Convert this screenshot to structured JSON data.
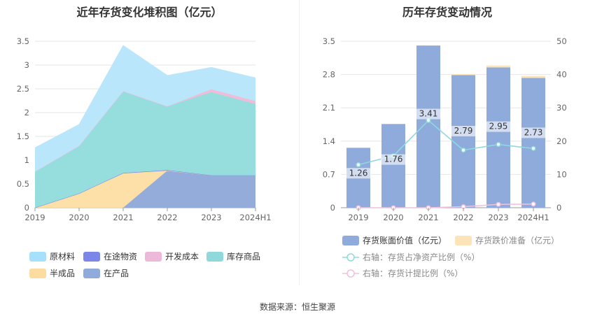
{
  "source_text": "数据来源：恒生聚源",
  "chart_data": [
    {
      "type": "area",
      "title": "近年存货变化堆积图（亿元）",
      "stacked": true,
      "x": [
        "2019",
        "2020",
        "2021",
        "2022",
        "2023",
        "2024H1"
      ],
      "ylim": [
        0,
        3.5
      ],
      "yticks": [
        "0",
        "0.5",
        "1",
        "1.5",
        "2",
        "2.5",
        "3",
        "3.5"
      ],
      "grid": true,
      "legend_position": "bottom",
      "series": [
        {
          "name": "在产品",
          "color": "#94acd9",
          "values": [
            0,
            0,
            0,
            0.78,
            0.68,
            0.68
          ]
        },
        {
          "name": "半成品",
          "color": "#fde0a8",
          "values": [
            0,
            0.3,
            0.72,
            0,
            0,
            0
          ]
        },
        {
          "name": "在途物资",
          "color": "#7b87e8",
          "values": [
            0,
            0,
            0.01,
            0.01,
            0,
            0
          ]
        },
        {
          "name": "库存商品",
          "color": "#96dede",
          "values": [
            0.76,
            1.0,
            1.72,
            1.34,
            1.75,
            1.5
          ]
        },
        {
          "name": "开发成本",
          "color": "#f0bcd8",
          "values": [
            0,
            0,
            0,
            0,
            0.06,
            0.06
          ]
        },
        {
          "name": "原材料",
          "color": "#b9e6fb",
          "values": [
            0.5,
            0.45,
            0.96,
            0.65,
            0.46,
            0.49
          ]
        }
      ],
      "legend": [
        {
          "name": "原材料",
          "color": "#a6e0fb"
        },
        {
          "name": "在途物资",
          "color": "#7b87e8"
        },
        {
          "name": "开发成本",
          "color": "#ecbad8"
        },
        {
          "name": "库存商品",
          "color": "#8fd9dd"
        },
        {
          "name": "半成品",
          "color": "#fddca0"
        },
        {
          "name": "在产品",
          "color": "#8eabdb"
        }
      ]
    },
    {
      "type": "bar",
      "title": "历年存货变动情况",
      "categories": [
        "2019",
        "2020",
        "2021",
        "2022",
        "2023",
        "2024H1"
      ],
      "ylim": [
        0,
        3.5
      ],
      "yticks": [
        "0",
        "0.7",
        "1.4",
        "2.1",
        "2.8",
        "3.5"
      ],
      "y2lim": [
        0,
        50
      ],
      "y2ticks": [
        "0",
        "10",
        "20",
        "30",
        "40",
        "50"
      ],
      "grid": true,
      "legend_position": "bottom",
      "series": [
        {
          "name": "存货账面价值（亿元）",
          "kind": "bar",
          "axis": "left",
          "color": "#8eabdb",
          "values": [
            1.26,
            1.76,
            3.41,
            2.79,
            2.95,
            2.73
          ],
          "labels": [
            "1.26",
            "1.76",
            "3.41",
            "2.79",
            "2.95",
            "2.73"
          ]
        },
        {
          "name": "存货跌价准备（亿元）",
          "kind": "bar-stack",
          "axis": "left",
          "color": "#fde4b8",
          "values": [
            0,
            0,
            0,
            0.02,
            0.04,
            0.04
          ]
        },
        {
          "name": "右轴：存货占净资产比例（%）",
          "kind": "line",
          "axis": "right",
          "color": "#8fd9dd",
          "values": [
            12.9,
            15.6,
            26.2,
            17.3,
            19.0,
            17.8
          ]
        },
        {
          "name": "右轴：存货计提比例（%）",
          "kind": "line",
          "axis": "right",
          "color": "#f0c0dc",
          "values": [
            0,
            0,
            0,
            0.3,
            1.0,
            1.1
          ]
        }
      ]
    }
  ]
}
